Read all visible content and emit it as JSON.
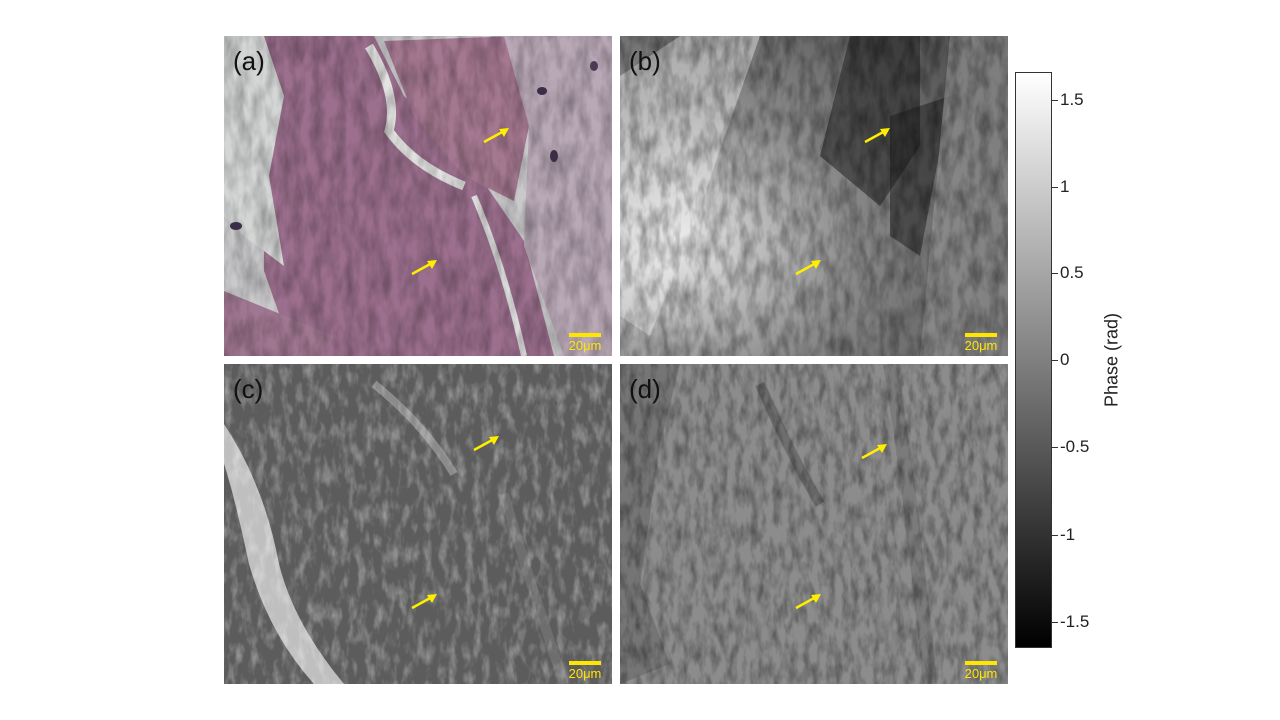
{
  "panels": [
    {
      "id": "a",
      "label": "(a)",
      "type": "histology",
      "scale_text": "20μm"
    },
    {
      "id": "b",
      "label": "(b)",
      "type": "phase",
      "scale_text": "20μm"
    },
    {
      "id": "c",
      "label": "(c)",
      "type": "phase",
      "scale_text": "20μm"
    },
    {
      "id": "d",
      "label": "(d)",
      "type": "phase",
      "scale_text": "20μm"
    }
  ],
  "colorbar": {
    "title": "Phase (rad)",
    "ticks": [
      "1.5",
      "1",
      "0.5",
      "0",
      "-0.5",
      "-1",
      "-1.5"
    ],
    "colors": {
      "top": "#ffffff",
      "bottom": "#000000"
    }
  },
  "colors": {
    "arrow": "#ffee00",
    "scalebar": "#ffe600",
    "stain": "#9a6f8c"
  },
  "icons": {
    "arrow": "arrow-icon"
  }
}
